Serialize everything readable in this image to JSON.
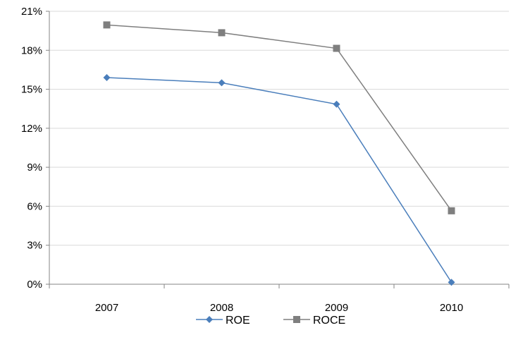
{
  "chart_data": {
    "type": "line",
    "categories": [
      "2007",
      "2008",
      "2009",
      "2010"
    ],
    "ylim": [
      0,
      21
    ],
    "yticks": [
      0,
      3,
      6,
      9,
      12,
      15,
      18,
      21
    ],
    "ytick_format": "%",
    "grid": true,
    "legend_position": "bottom",
    "series": [
      {
        "name": "ROE",
        "values": [
          15.9,
          15.5,
          13.85,
          0.15
        ],
        "color": "#4A7EBB",
        "marker": "diamond"
      },
      {
        "name": "ROCE",
        "values": [
          19.95,
          19.35,
          18.15,
          5.65
        ],
        "color": "#7F7F7F",
        "marker": "square"
      }
    ]
  }
}
